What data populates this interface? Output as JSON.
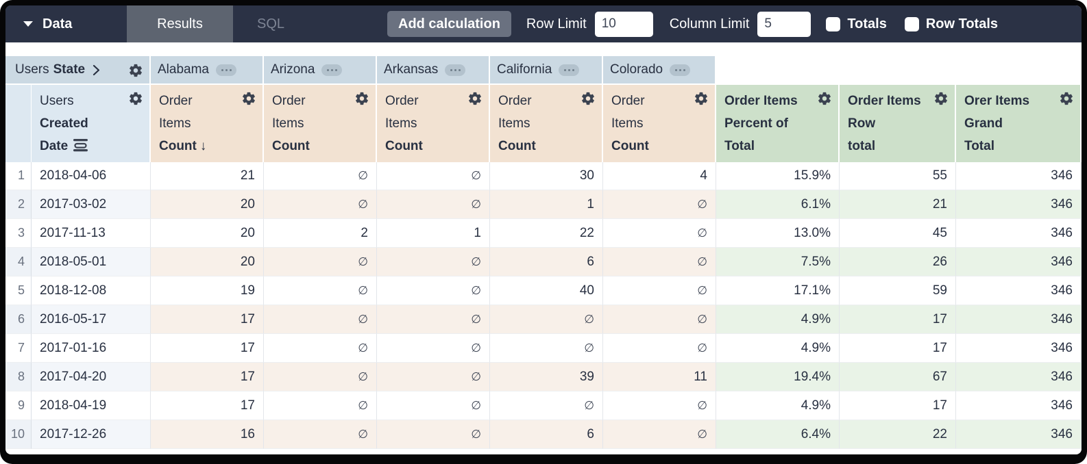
{
  "topbar": {
    "data_label": "Data",
    "results_tab": "Results",
    "sql_tab": "SQL",
    "add_calculation": "Add calculation",
    "row_limit_label": "Row Limit",
    "row_limit_value": "10",
    "column_limit_label": "Column Limit",
    "column_limit_value": "5",
    "totals_label": "Totals",
    "row_totals_label": "Row Totals",
    "totals_checked": false,
    "row_totals_checked": false
  },
  "pivot_header": {
    "view": "Users",
    "field": "State",
    "states": [
      "Alabama",
      "Arizona",
      "Arkansas",
      "California",
      "Colorado"
    ]
  },
  "field_headers": {
    "dimension": {
      "view": "Users",
      "line2": "Created",
      "line3": "Date"
    },
    "measure": {
      "line1": "Order",
      "line2": "Items",
      "line3": "Count"
    },
    "sort_arrow": "↓",
    "calcs": [
      {
        "line1": "Order Items",
        "line2": "Percent of",
        "line3": "Total"
      },
      {
        "line1": "Order Items",
        "line2": "Row",
        "line3": "total"
      },
      {
        "line1": "Orer Items",
        "line2": "Grand",
        "line3": "Total"
      }
    ]
  },
  "symbols": {
    "null_value": "∅"
  },
  "rows": [
    {
      "num": "1",
      "date": "2018-04-06",
      "values": [
        "21",
        "∅",
        "∅",
        "30",
        "4"
      ],
      "pct": "15.9%",
      "row_total": "55",
      "grand_total": "346"
    },
    {
      "num": "2",
      "date": "2017-03-02",
      "values": [
        "20",
        "∅",
        "∅",
        "1",
        "∅"
      ],
      "pct": "6.1%",
      "row_total": "21",
      "grand_total": "346"
    },
    {
      "num": "3",
      "date": "2017-11-13",
      "values": [
        "20",
        "2",
        "1",
        "22",
        "∅"
      ],
      "pct": "13.0%",
      "row_total": "45",
      "grand_total": "346"
    },
    {
      "num": "4",
      "date": "2018-05-01",
      "values": [
        "20",
        "∅",
        "∅",
        "6",
        "∅"
      ],
      "pct": "7.5%",
      "row_total": "26",
      "grand_total": "346"
    },
    {
      "num": "5",
      "date": "2018-12-08",
      "values": [
        "19",
        "∅",
        "∅",
        "40",
        "∅"
      ],
      "pct": "17.1%",
      "row_total": "59",
      "grand_total": "346"
    },
    {
      "num": "6",
      "date": "2016-05-17",
      "values": [
        "17",
        "∅",
        "∅",
        "∅",
        "∅"
      ],
      "pct": "4.9%",
      "row_total": "17",
      "grand_total": "346"
    },
    {
      "num": "7",
      "date": "2017-01-16",
      "values": [
        "17",
        "∅",
        "∅",
        "∅",
        "∅"
      ],
      "pct": "4.9%",
      "row_total": "17",
      "grand_total": "346"
    },
    {
      "num": "8",
      "date": "2017-04-20",
      "values": [
        "17",
        "∅",
        "∅",
        "39",
        "11"
      ],
      "pct": "19.4%",
      "row_total": "67",
      "grand_total": "346"
    },
    {
      "num": "9",
      "date": "2018-04-19",
      "values": [
        "17",
        "∅",
        "∅",
        "∅",
        "∅"
      ],
      "pct": "4.9%",
      "row_total": "17",
      "grand_total": "346"
    },
    {
      "num": "10",
      "date": "2017-12-26",
      "values": [
        "16",
        "∅",
        "∅",
        "6",
        "∅"
      ],
      "pct": "6.4%",
      "row_total": "22",
      "grand_total": "346"
    }
  ],
  "colors": {
    "topbar": "#2b3245",
    "active_tab": "#5d6470",
    "pivot_header_bg": "#cbd9e3",
    "dimension_header_bg": "#dde8f1",
    "measure_header_bg": "#f2e2d2",
    "calc_header_bg": "#cde0ca",
    "even_row_dim": "#f3f6fa",
    "even_row_measure": "#f8f0e9",
    "even_row_calc": "#e9f3e7"
  }
}
